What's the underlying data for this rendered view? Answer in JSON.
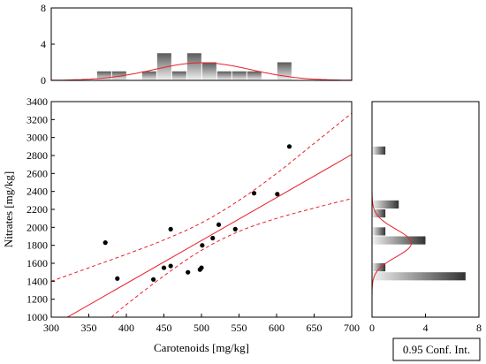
{
  "chart_data": {
    "type": "scatter",
    "title": "",
    "xlabel": "Carotenoids [mg/kg]",
    "ylabel": "Nitrates [mg/kg]",
    "xlim": [
      300,
      700
    ],
    "ylim": [
      1000,
      3400
    ],
    "x_ticks": [
      300,
      350,
      400,
      450,
      500,
      550,
      600,
      650,
      700
    ],
    "y_ticks": [
      1000,
      1200,
      1400,
      1600,
      1800,
      2000,
      2200,
      2400,
      2600,
      2800,
      3000,
      3200,
      3400
    ],
    "points": [
      {
        "x": 372,
        "y": 1830
      },
      {
        "x": 388,
        "y": 1430
      },
      {
        "x": 436,
        "y": 1420
      },
      {
        "x": 450,
        "y": 1550
      },
      {
        "x": 459,
        "y": 1980
      },
      {
        "x": 459,
        "y": 1570
      },
      {
        "x": 482,
        "y": 1500
      },
      {
        "x": 498,
        "y": 1530
      },
      {
        "x": 500,
        "y": 1550
      },
      {
        "x": 501,
        "y": 1800
      },
      {
        "x": 515,
        "y": 1880
      },
      {
        "x": 523,
        "y": 2030
      },
      {
        "x": 545,
        "y": 1980
      },
      {
        "x": 570,
        "y": 2380
      },
      {
        "x": 601,
        "y": 2370
      },
      {
        "x": 617,
        "y": 2900
      }
    ],
    "regression_line": {
      "x": [
        300,
        700
      ],
      "y": [
        897,
        2810
      ]
    },
    "confidence_upper": {
      "x": [
        300,
        350,
        400,
        450,
        500,
        550,
        600,
        650,
        700
      ],
      "y": [
        1400,
        1550,
        1700,
        1860,
        2050,
        2300,
        2600,
        2935,
        3270
      ]
    },
    "confidence_lower": {
      "x": [
        380,
        400,
        450,
        500,
        550,
        600,
        650,
        700
      ],
      "y": [
        1000,
        1140,
        1460,
        1745,
        1955,
        2100,
        2215,
        2320
      ]
    },
    "legend": {
      "label": "0.95 Conf. Int."
    },
    "top_histogram": {
      "ylim": [
        0,
        8
      ],
      "y_ticks": [
        0,
        4,
        8
      ],
      "bin_width": 20,
      "bins": [
        {
          "start": 361,
          "count": 1
        },
        {
          "start": 381,
          "count": 1
        },
        {
          "start": 421,
          "count": 1
        },
        {
          "start": 441,
          "count": 3
        },
        {
          "start": 461,
          "count": 1
        },
        {
          "start": 481,
          "count": 3
        },
        {
          "start": 501,
          "count": 2
        },
        {
          "start": 521,
          "count": 1
        },
        {
          "start": 541,
          "count": 1
        },
        {
          "start": 561,
          "count": 1
        },
        {
          "start": 601,
          "count": 2
        }
      ],
      "normal_fit": {
        "mean": 501,
        "sd": 65,
        "peak": 1.95
      }
    },
    "right_histogram": {
      "xlim": [
        0,
        8
      ],
      "x_ticks": [
        0,
        4,
        8
      ],
      "bin_width": 100,
      "bins": [
        {
          "start": 1400,
          "count": 7
        },
        {
          "start": 1500,
          "count": 1
        },
        {
          "start": 1800,
          "count": 4
        },
        {
          "start": 1900,
          "count": 1
        },
        {
          "start": 2100,
          "count": 1
        },
        {
          "start": 2200,
          "count": 2
        },
        {
          "start": 2800,
          "count": 1
        }
      ],
      "normal_fit": {
        "mean": 1825,
        "sd": 155,
        "peak": 2.95
      }
    },
    "colors": {
      "regression": "#e8212a",
      "points": "#000000",
      "bar_dark": "#5a5a5a",
      "bar_light": "#f2f2f2"
    }
  }
}
